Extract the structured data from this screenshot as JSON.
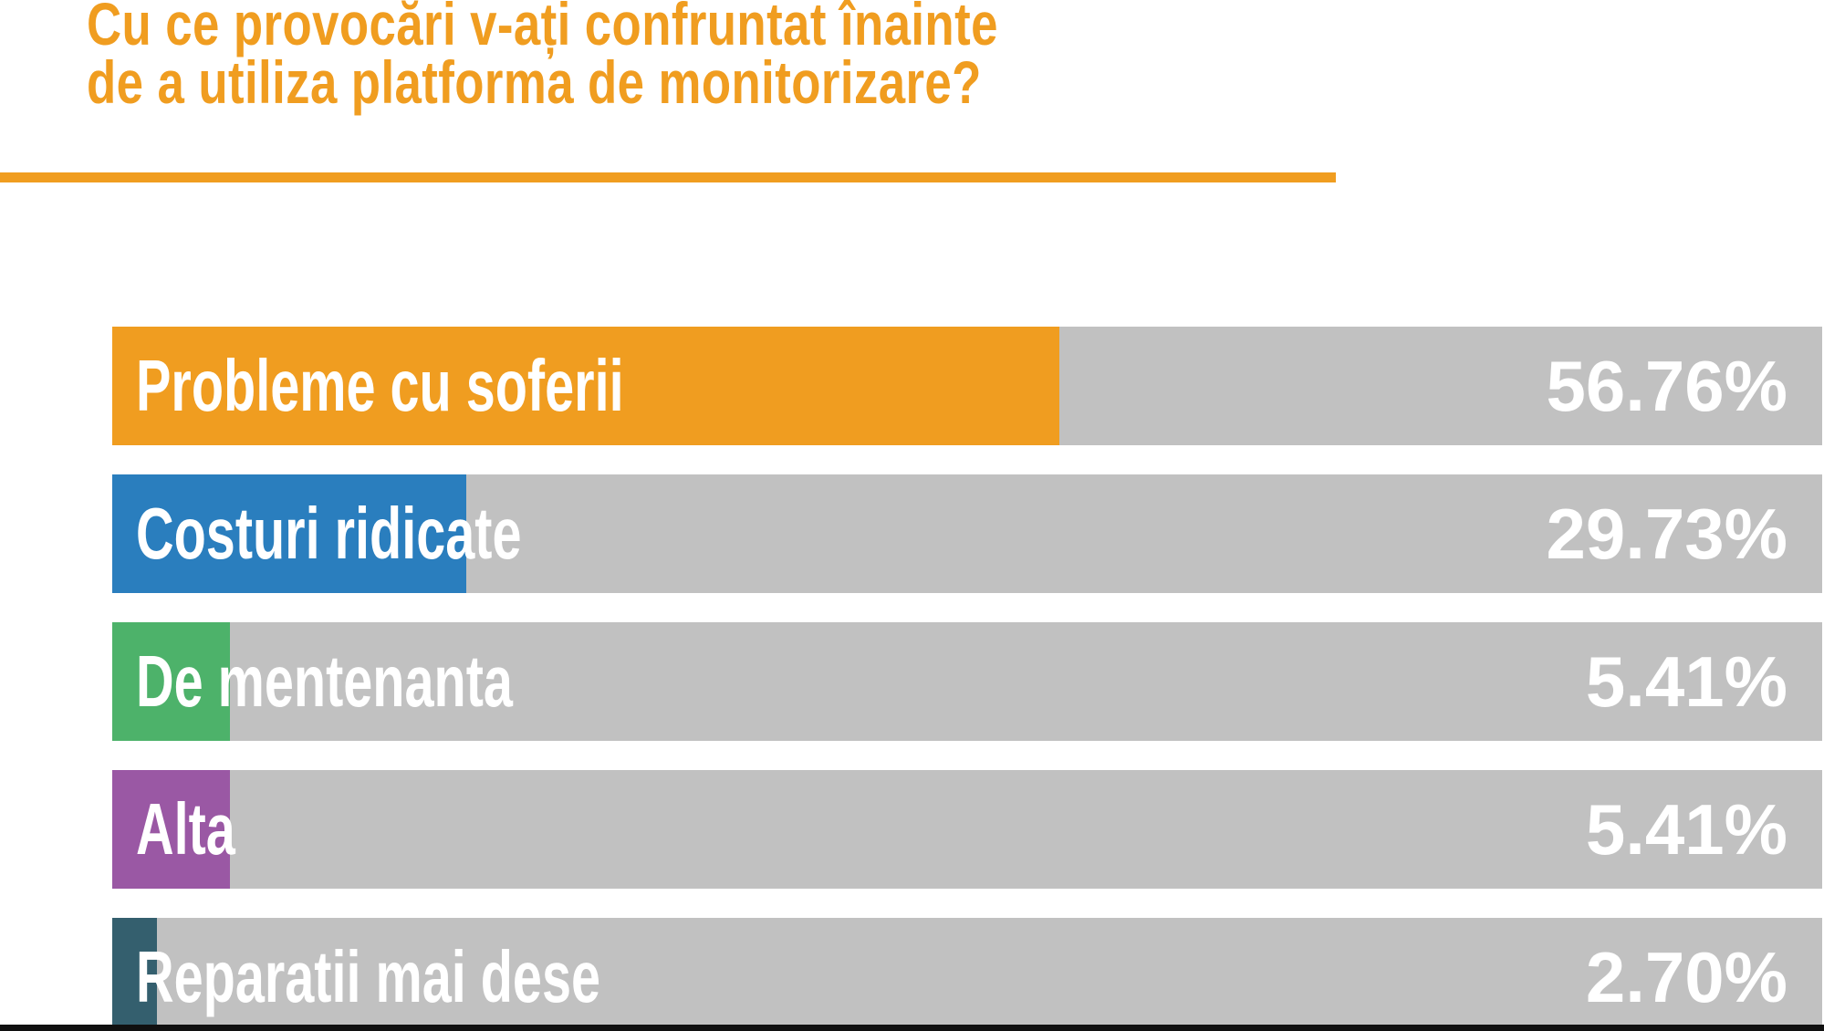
{
  "header": {
    "title_line1": "Cu ce provocări v-ați confruntat înainte",
    "title_line2": "de a utiliza platforma de monitorizare?"
  },
  "colors": {
    "accent_orange": "#F09D20",
    "track_gray": "#C1C1C1",
    "label_white": "#FFFFFF",
    "bottom_edge_dark": "#101010"
  },
  "chart_data": {
    "type": "bar",
    "orientation": "horizontal",
    "title": "Cu ce provocări v-ați confruntat înainte de a utiliza platforma de monitorizare?",
    "categories": [
      "Probleme cu soferii",
      "Costuri ridicate",
      "De mentenanta",
      "Alta",
      "Reparatii mai dese"
    ],
    "values": [
      56.76,
      29.73,
      5.41,
      5.41,
      2.7
    ],
    "value_labels": [
      "56.76%",
      "29.73%",
      "5.41%",
      "5.41%",
      "2.70%"
    ],
    "bar_colors": [
      "#F09D20",
      "#2A7EBE",
      "#4DB26A",
      "#9A58A4",
      "#345F6E"
    ],
    "bar_visual_width_pct": [
      55.4,
      20.7,
      6.9,
      6.9,
      2.6
    ],
    "xlim": [
      0,
      100
    ],
    "grid": false,
    "legend": false,
    "track_color": "#C1C1C1",
    "value_label_position": "right-inside-track",
    "category_label_position": "left-inside-bar"
  }
}
